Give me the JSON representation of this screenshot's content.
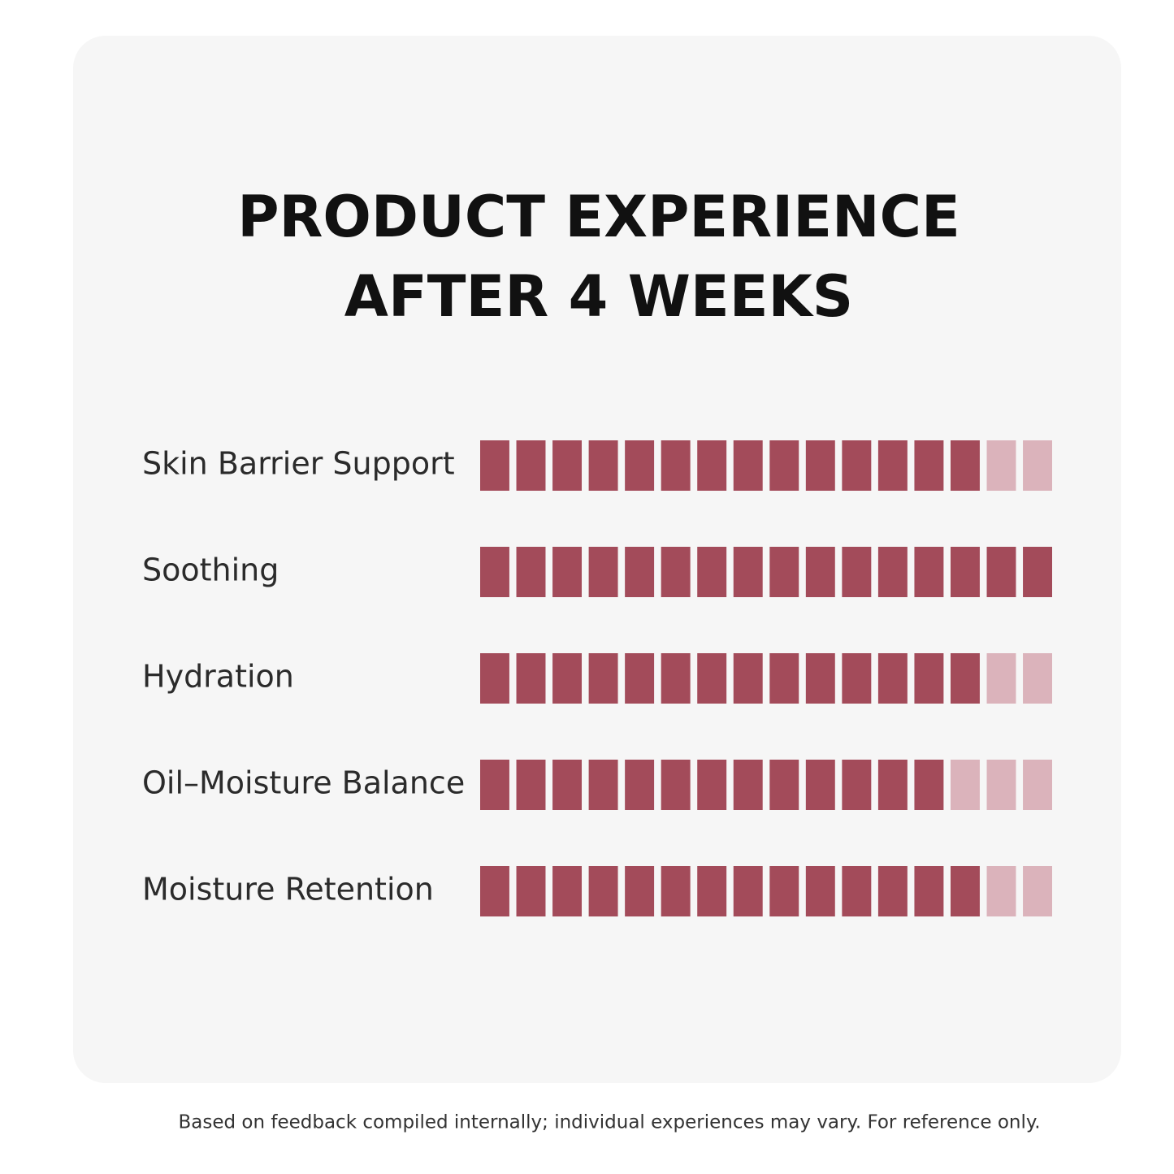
{
  "chart_data": {
    "type": "segmented-bar",
    "title": [
      "PRODUCT EXPERIENCE",
      "AFTER 4 WEEKS"
    ],
    "categories": [
      "Skin Barrier Support",
      "Soothing",
      "Hydration",
      "Oil–Moisture Balance",
      "Moisture Retention"
    ],
    "values": [
      14,
      16,
      14,
      13,
      14
    ],
    "xlim": [
      0,
      16
    ],
    "color": "#a34b5a",
    "track_color": "#dbb3bb",
    "footnote": "Based on feedback compiled internally; individual experiences may vary. For reference only."
  }
}
